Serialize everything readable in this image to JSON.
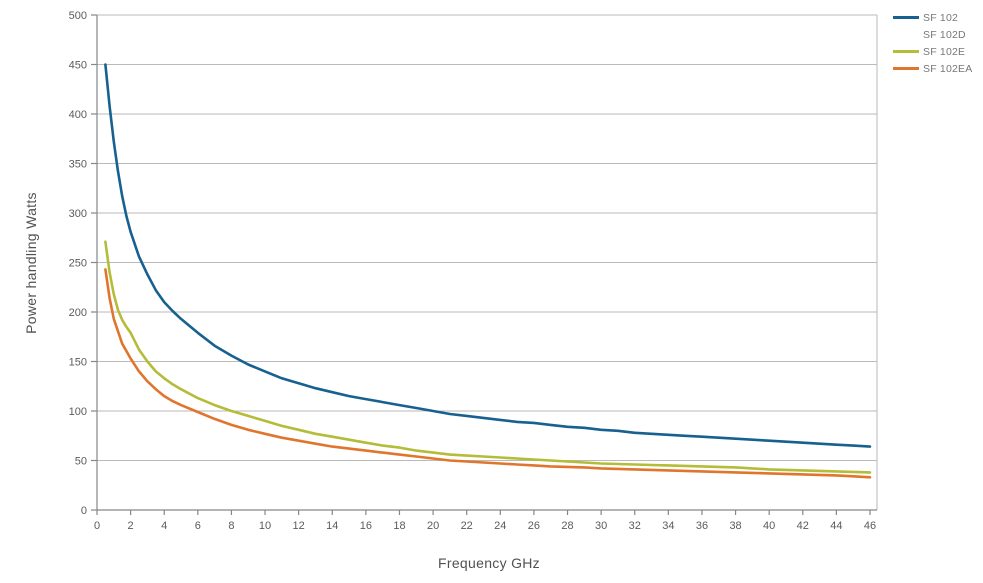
{
  "chart_data": {
    "type": "line",
    "title": "",
    "xlabel": "Frequency GHz",
    "ylabel": "Power handling Watts",
    "xlim": [
      0,
      46.4
    ],
    "ylim": [
      0,
      500
    ],
    "x_ticks": [
      0,
      2,
      4,
      6,
      8,
      10,
      12,
      14,
      16,
      18,
      20,
      22,
      24,
      26,
      28,
      30,
      32,
      34,
      36,
      38,
      40,
      42,
      44,
      46
    ],
    "y_ticks": [
      0,
      50,
      100,
      150,
      200,
      250,
      300,
      350,
      400,
      450,
      500
    ],
    "grid": "horizontal",
    "legend_position": "top-right-outside",
    "series": [
      {
        "name": "SF 102",
        "color": "#16618f",
        "points": [
          [
            0.5,
            450
          ],
          [
            0.75,
            408
          ],
          [
            1,
            372
          ],
          [
            1.25,
            342
          ],
          [
            1.5,
            317
          ],
          [
            1.75,
            297
          ],
          [
            2,
            281
          ],
          [
            2.5,
            256
          ],
          [
            3,
            238
          ],
          [
            3.5,
            222
          ],
          [
            4,
            210
          ],
          [
            4.5,
            201
          ],
          [
            5,
            193
          ],
          [
            6,
            179
          ],
          [
            7,
            166
          ],
          [
            8,
            156
          ],
          [
            9,
            147
          ],
          [
            10,
            140
          ],
          [
            11,
            133
          ],
          [
            12,
            128
          ],
          [
            13,
            123
          ],
          [
            14,
            119
          ],
          [
            15,
            115
          ],
          [
            16,
            112
          ],
          [
            17,
            109
          ],
          [
            18,
            106
          ],
          [
            19,
            103
          ],
          [
            20,
            100
          ],
          [
            21,
            97
          ],
          [
            22,
            95
          ],
          [
            23,
            93
          ],
          [
            24,
            91
          ],
          [
            25,
            89
          ],
          [
            26,
            88
          ],
          [
            27,
            86
          ],
          [
            28,
            84
          ],
          [
            29,
            83
          ],
          [
            30,
            81
          ],
          [
            31,
            80
          ],
          [
            32,
            78
          ],
          [
            33,
            77
          ],
          [
            34,
            76
          ],
          [
            35,
            75
          ],
          [
            36,
            74
          ],
          [
            37,
            73
          ],
          [
            38,
            72
          ],
          [
            39,
            71
          ],
          [
            40,
            70
          ],
          [
            41,
            69
          ],
          [
            42,
            68
          ],
          [
            43,
            67
          ],
          [
            44,
            66
          ],
          [
            45,
            65
          ],
          [
            46,
            64
          ]
        ]
      },
      {
        "name": "SF 102D",
        "color": "#ffffff",
        "points": []
      },
      {
        "name": "SF 102E",
        "color": "#b4bc38",
        "points": [
          [
            0.5,
            271
          ],
          [
            0.75,
            240
          ],
          [
            1,
            218
          ],
          [
            1.25,
            202
          ],
          [
            1.5,
            192
          ],
          [
            1.75,
            185
          ],
          [
            2,
            179
          ],
          [
            2.5,
            162
          ],
          [
            3,
            150
          ],
          [
            3.5,
            140
          ],
          [
            4,
            133
          ],
          [
            4.5,
            127
          ],
          [
            5,
            122
          ],
          [
            6,
            113
          ],
          [
            7,
            106
          ],
          [
            8,
            100
          ],
          [
            9,
            95
          ],
          [
            10,
            90
          ],
          [
            11,
            85
          ],
          [
            12,
            81
          ],
          [
            13,
            77
          ],
          [
            14,
            74
          ],
          [
            15,
            71
          ],
          [
            16,
            68
          ],
          [
            17,
            65
          ],
          [
            18,
            63
          ],
          [
            19,
            60
          ],
          [
            20,
            58
          ],
          [
            21,
            56
          ],
          [
            22,
            55
          ],
          [
            23,
            54
          ],
          [
            24,
            53
          ],
          [
            25,
            52
          ],
          [
            26,
            51
          ],
          [
            27,
            50
          ],
          [
            28,
            49
          ],
          [
            29,
            48
          ],
          [
            30,
            47
          ],
          [
            31,
            46.5
          ],
          [
            32,
            46
          ],
          [
            33,
            45.5
          ],
          [
            34,
            45
          ],
          [
            35,
            44.5
          ],
          [
            36,
            44
          ],
          [
            37,
            43.5
          ],
          [
            38,
            43
          ],
          [
            39,
            42
          ],
          [
            40,
            41
          ],
          [
            41,
            40.5
          ],
          [
            42,
            40
          ],
          [
            43,
            39.5
          ],
          [
            44,
            39
          ],
          [
            45,
            38.5
          ],
          [
            46,
            38
          ]
        ]
      },
      {
        "name": "SF 102EA",
        "color": "#e0762d",
        "points": [
          [
            0.5,
            243
          ],
          [
            0.75,
            214
          ],
          [
            1,
            193
          ],
          [
            1.5,
            168
          ],
          [
            2,
            153
          ],
          [
            2.5,
            140
          ],
          [
            3,
            130
          ],
          [
            3.5,
            122
          ],
          [
            4,
            115
          ],
          [
            4.5,
            110
          ],
          [
            5,
            106
          ],
          [
            6,
            99
          ],
          [
            7,
            92
          ],
          [
            8,
            86
          ],
          [
            9,
            81
          ],
          [
            10,
            77
          ],
          [
            11,
            73
          ],
          [
            12,
            70
          ],
          [
            13,
            67
          ],
          [
            14,
            64
          ],
          [
            15,
            62
          ],
          [
            16,
            60
          ],
          [
            17,
            58
          ],
          [
            18,
            56
          ],
          [
            19,
            54
          ],
          [
            20,
            52
          ],
          [
            21,
            50
          ],
          [
            22,
            49
          ],
          [
            23,
            48
          ],
          [
            24,
            47
          ],
          [
            25,
            46
          ],
          [
            26,
            45
          ],
          [
            27,
            44
          ],
          [
            28,
            43.5
          ],
          [
            29,
            43
          ],
          [
            30,
            42
          ],
          [
            31,
            41.5
          ],
          [
            32,
            41
          ],
          [
            33,
            40.5
          ],
          [
            34,
            40
          ],
          [
            35,
            39.5
          ],
          [
            36,
            39
          ],
          [
            37,
            38.5
          ],
          [
            38,
            38
          ],
          [
            39,
            37.5
          ],
          [
            40,
            37
          ],
          [
            41,
            36.5
          ],
          [
            42,
            36
          ],
          [
            43,
            35.5
          ],
          [
            44,
            35
          ],
          [
            45,
            34
          ],
          [
            46,
            33
          ]
        ]
      }
    ]
  },
  "legend": {
    "items": [
      {
        "label": "SF 102",
        "color": "#16618f"
      },
      {
        "label": "SF 102D",
        "color": "#ffffff"
      },
      {
        "label": "SF 102E",
        "color": "#b4bc38"
      },
      {
        "label": "SF 102EA",
        "color": "#e0762d"
      }
    ]
  },
  "colors": {
    "gridline": "#b9babc",
    "plot_border": "#b9babc",
    "axis": "#85878a",
    "tick_text": "#5a5b5e",
    "axis_title_text": "#505153",
    "background": "#ffffff"
  }
}
